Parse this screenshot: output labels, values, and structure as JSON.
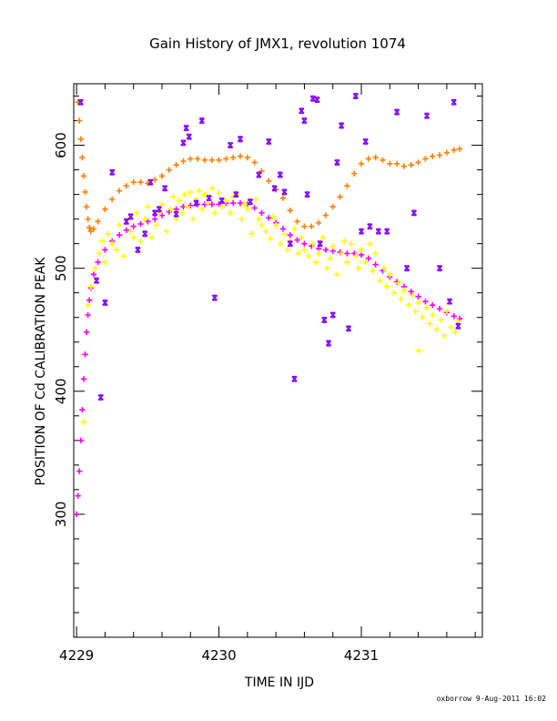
{
  "chart_data": {
    "type": "scatter",
    "title": "Gain History of JMX1, revolution 1074",
    "xlabel": "TIME IN IJD",
    "ylabel": "POSITION OF Cd CALIBRATION PEAK",
    "footer": "oxborrow  9-Aug-2011 16:02",
    "xlim": [
      4228.98,
      4231.85
    ],
    "ylim": [
      200,
      650
    ],
    "x_major_ticks": [
      4229,
      4230,
      4231
    ],
    "x_tick_labels": [
      "4229",
      "4230",
      "4231"
    ],
    "y_major_ticks": [
      300,
      400,
      500,
      600
    ],
    "y_tick_labels": [
      "300",
      "400",
      "500",
      "600"
    ],
    "grid": false,
    "legend": "none",
    "series": [
      {
        "color": "#FF8000",
        "marker": "plus",
        "points": [
          [
            4229.01,
            635
          ],
          [
            4229.02,
            620
          ],
          [
            4229.03,
            605
          ],
          [
            4229.04,
            590
          ],
          [
            4229.05,
            575
          ],
          [
            4229.06,
            562
          ],
          [
            4229.07,
            550
          ],
          [
            4229.08,
            540
          ],
          [
            4229.09,
            533
          ],
          [
            4229.1,
            530
          ],
          [
            4229.12,
            532
          ],
          [
            4229.15,
            538
          ],
          [
            4229.2,
            548
          ],
          [
            4229.25,
            556
          ],
          [
            4229.3,
            563
          ],
          [
            4229.35,
            567
          ],
          [
            4229.4,
            570
          ],
          [
            4229.45,
            570
          ],
          [
            4229.5,
            569
          ],
          [
            4229.55,
            572
          ],
          [
            4229.6,
            575
          ],
          [
            4229.65,
            580
          ],
          [
            4229.7,
            584
          ],
          [
            4229.75,
            587
          ],
          [
            4229.8,
            589
          ],
          [
            4229.85,
            589
          ],
          [
            4229.9,
            588
          ],
          [
            4229.95,
            588
          ],
          [
            4230.0,
            588
          ],
          [
            4230.05,
            589
          ],
          [
            4230.1,
            590
          ],
          [
            4230.15,
            591
          ],
          [
            4230.2,
            590
          ],
          [
            4230.25,
            586
          ],
          [
            4230.3,
            579
          ],
          [
            4230.35,
            571
          ],
          [
            4230.4,
            564
          ],
          [
            4230.45,
            557
          ],
          [
            4230.5,
            547
          ],
          [
            4230.55,
            538
          ],
          [
            4230.6,
            534
          ],
          [
            4230.65,
            534
          ],
          [
            4230.7,
            537
          ],
          [
            4230.75,
            543
          ],
          [
            4230.8,
            550
          ],
          [
            4230.85,
            558
          ],
          [
            4230.9,
            567
          ],
          [
            4230.95,
            577
          ],
          [
            4231.0,
            585
          ],
          [
            4231.05,
            589
          ],
          [
            4231.1,
            590
          ],
          [
            4231.15,
            588
          ],
          [
            4231.2,
            585
          ],
          [
            4231.25,
            585
          ],
          [
            4231.3,
            583
          ],
          [
            4231.35,
            584
          ],
          [
            4231.4,
            586
          ],
          [
            4231.45,
            589
          ],
          [
            4231.5,
            591
          ],
          [
            4231.55,
            592
          ],
          [
            4231.6,
            594
          ],
          [
            4231.65,
            596
          ],
          [
            4231.69,
            597
          ]
        ]
      },
      {
        "color": "#FF00FF",
        "marker": "plus",
        "points": [
          [
            4229.0,
            300
          ],
          [
            4229.01,
            315
          ],
          [
            4229.02,
            335
          ],
          [
            4229.03,
            360
          ],
          [
            4229.04,
            385
          ],
          [
            4229.05,
            410
          ],
          [
            4229.06,
            430
          ],
          [
            4229.07,
            448
          ],
          [
            4229.08,
            462
          ],
          [
            4229.09,
            474
          ],
          [
            4229.1,
            484
          ],
          [
            4229.12,
            495
          ],
          [
            4229.15,
            505
          ],
          [
            4229.2,
            515
          ],
          [
            4229.25,
            522
          ],
          [
            4229.3,
            527
          ],
          [
            4229.35,
            531
          ],
          [
            4229.4,
            534
          ],
          [
            4229.45,
            536
          ],
          [
            4229.5,
            538
          ],
          [
            4229.55,
            540
          ],
          [
            4229.6,
            543
          ],
          [
            4229.65,
            546
          ],
          [
            4229.7,
            548
          ],
          [
            4229.75,
            550
          ],
          [
            4229.8,
            551
          ],
          [
            4229.85,
            552
          ],
          [
            4229.9,
            552
          ],
          [
            4229.95,
            552
          ],
          [
            4230.0,
            552
          ],
          [
            4230.05,
            553
          ],
          [
            4230.1,
            553
          ],
          [
            4230.15,
            553
          ],
          [
            4230.2,
            552
          ],
          [
            4230.25,
            549
          ],
          [
            4230.3,
            545
          ],
          [
            4230.35,
            541
          ],
          [
            4230.4,
            537
          ],
          [
            4230.45,
            532
          ],
          [
            4230.5,
            527
          ],
          [
            4230.55,
            523
          ],
          [
            4230.6,
            520
          ],
          [
            4230.65,
            518
          ],
          [
            4230.7,
            516
          ],
          [
            4230.75,
            515
          ],
          [
            4230.8,
            514
          ],
          [
            4230.85,
            513
          ],
          [
            4230.9,
            512
          ],
          [
            4230.95,
            512
          ],
          [
            4231.0,
            511
          ],
          [
            4231.05,
            508
          ],
          [
            4231.1,
            503
          ],
          [
            4231.15,
            498
          ],
          [
            4231.2,
            493
          ],
          [
            4231.25,
            489
          ],
          [
            4231.3,
            485
          ],
          [
            4231.35,
            481
          ],
          [
            4231.4,
            477
          ],
          [
            4231.45,
            473
          ],
          [
            4231.5,
            470
          ],
          [
            4231.55,
            467
          ],
          [
            4231.6,
            464
          ],
          [
            4231.65,
            461
          ],
          [
            4231.69,
            459
          ]
        ]
      },
      {
        "color": "#FFFF00",
        "marker": "plus",
        "points": [
          [
            4229.05,
            375
          ],
          [
            4229.08,
            470
          ],
          [
            4229.1,
            485
          ],
          [
            4229.13,
            500
          ],
          [
            4229.16,
            512
          ],
          [
            4229.18,
            522
          ],
          [
            4229.2,
            505
          ],
          [
            4229.22,
            528
          ],
          [
            4229.25,
            520
          ],
          [
            4229.28,
            515
          ],
          [
            4229.3,
            535
          ],
          [
            4229.33,
            510
          ],
          [
            4229.36,
            540
          ],
          [
            4229.38,
            530
          ],
          [
            4229.4,
            525
          ],
          [
            4229.42,
            545
          ],
          [
            4229.45,
            522
          ],
          [
            4229.48,
            540
          ],
          [
            4229.5,
            550
          ],
          [
            4229.53,
            525
          ],
          [
            4229.56,
            535
          ],
          [
            4229.58,
            545
          ],
          [
            4229.6,
            552
          ],
          [
            4229.63,
            530
          ],
          [
            4229.66,
            548
          ],
          [
            4229.68,
            558
          ],
          [
            4229.7,
            540
          ],
          [
            4229.72,
            555
          ],
          [
            4229.74,
            545
          ],
          [
            4229.76,
            560
          ],
          [
            4229.78,
            550
          ],
          [
            4229.8,
            562
          ],
          [
            4229.82,
            540
          ],
          [
            4229.84,
            556
          ],
          [
            4229.86,
            563
          ],
          [
            4229.88,
            548
          ],
          [
            4229.9,
            560
          ],
          [
            4229.92,
            553
          ],
          [
            4229.95,
            565
          ],
          [
            4229.97,
            545
          ],
          [
            4230.0,
            561
          ],
          [
            4230.02,
            550
          ],
          [
            4230.05,
            555
          ],
          [
            4230.08,
            545
          ],
          [
            4230.1,
            558
          ],
          [
            4230.13,
            560
          ],
          [
            4230.16,
            540
          ],
          [
            4230.18,
            552
          ],
          [
            4230.2,
            548
          ],
          [
            4230.23,
            528
          ],
          [
            4230.26,
            556
          ],
          [
            4230.28,
            540
          ],
          [
            4230.3,
            535
          ],
          [
            4230.33,
            530
          ],
          [
            4230.36,
            524
          ],
          [
            4230.38,
            542
          ],
          [
            4230.4,
            535
          ],
          [
            4230.43,
            520
          ],
          [
            4230.46,
            528
          ],
          [
            4230.48,
            515
          ],
          [
            4230.5,
            522
          ],
          [
            4230.53,
            532
          ],
          [
            4230.56,
            512
          ],
          [
            4230.58,
            525
          ],
          [
            4230.6,
            515
          ],
          [
            4230.63,
            510
          ],
          [
            4230.66,
            520
          ],
          [
            4230.68,
            505
          ],
          [
            4230.7,
            512
          ],
          [
            4230.73,
            525
          ],
          [
            4230.76,
            500
          ],
          [
            4230.78,
            508
          ],
          [
            4230.8,
            518
          ],
          [
            4230.83,
            495
          ],
          [
            4230.86,
            512
          ],
          [
            4230.88,
            522
          ],
          [
            4230.9,
            505
          ],
          [
            4230.93,
            520
          ],
          [
            4230.96,
            510
          ],
          [
            4230.98,
            500
          ],
          [
            4231.0,
            515
          ],
          [
            4231.03,
            505
          ],
          [
            4231.06,
            520
          ],
          [
            4231.08,
            498
          ],
          [
            4231.1,
            512
          ],
          [
            4231.13,
            490
          ],
          [
            4231.16,
            500
          ],
          [
            4231.18,
            485
          ],
          [
            4231.2,
            495
          ],
          [
            4231.23,
            480
          ],
          [
            4231.26,
            488
          ],
          [
            4231.28,
            475
          ],
          [
            4231.3,
            482
          ],
          [
            4231.33,
            470
          ],
          [
            4231.36,
            478
          ],
          [
            4231.38,
            465
          ],
          [
            4231.4,
            472
          ],
          [
            4231.43,
            460
          ],
          [
            4231.46,
            468
          ],
          [
            4231.48,
            455
          ],
          [
            4231.5,
            462
          ],
          [
            4231.53,
            450
          ],
          [
            4231.56,
            458
          ],
          [
            4231.58,
            445
          ],
          [
            4231.6,
            465
          ],
          [
            4231.63,
            452
          ],
          [
            4231.66,
            448
          ],
          [
            4231.68,
            457
          ],
          [
            4231.4,
            433
          ]
        ]
      },
      {
        "color": "#8000FF",
        "marker": "cross",
        "points": [
          [
            4229.03,
            635
          ],
          [
            4229.14,
            490
          ],
          [
            4229.17,
            395
          ],
          [
            4229.2,
            472
          ],
          [
            4229.25,
            578
          ],
          [
            4229.35,
            538
          ],
          [
            4229.38,
            542
          ],
          [
            4229.43,
            515
          ],
          [
            4229.48,
            528
          ],
          [
            4229.52,
            570
          ],
          [
            4229.55,
            545
          ],
          [
            4229.58,
            548
          ],
          [
            4229.62,
            565
          ],
          [
            4229.7,
            544
          ],
          [
            4229.75,
            602
          ],
          [
            4229.77,
            614
          ],
          [
            4229.79,
            607
          ],
          [
            4229.84,
            553
          ],
          [
            4229.88,
            620
          ],
          [
            4229.93,
            557
          ],
          [
            4229.97,
            476
          ],
          [
            4230.02,
            555
          ],
          [
            4230.08,
            600
          ],
          [
            4230.12,
            560
          ],
          [
            4230.15,
            605
          ],
          [
            4230.22,
            554
          ],
          [
            4230.28,
            576
          ],
          [
            4230.35,
            603
          ],
          [
            4230.39,
            565
          ],
          [
            4230.43,
            576
          ],
          [
            4230.46,
            562
          ],
          [
            4230.5,
            520
          ],
          [
            4230.53,
            410
          ],
          [
            4230.58,
            628
          ],
          [
            4230.6,
            620
          ],
          [
            4230.62,
            560
          ],
          [
            4230.66,
            638
          ],
          [
            4230.69,
            637
          ],
          [
            4230.71,
            520
          ],
          [
            4230.74,
            458
          ],
          [
            4230.77,
            439
          ],
          [
            4230.8,
            462
          ],
          [
            4230.83,
            586
          ],
          [
            4230.86,
            616
          ],
          [
            4230.91,
            451
          ],
          [
            4230.96,
            640
          ],
          [
            4231.0,
            530
          ],
          [
            4231.03,
            603
          ],
          [
            4231.06,
            534
          ],
          [
            4231.12,
            530
          ],
          [
            4231.18,
            530
          ],
          [
            4231.25,
            627
          ],
          [
            4231.32,
            500
          ],
          [
            4231.37,
            545
          ],
          [
            4231.46,
            624
          ],
          [
            4231.55,
            500
          ],
          [
            4231.62,
            473
          ],
          [
            4231.65,
            635
          ],
          [
            4231.68,
            453
          ]
        ]
      }
    ]
  }
}
